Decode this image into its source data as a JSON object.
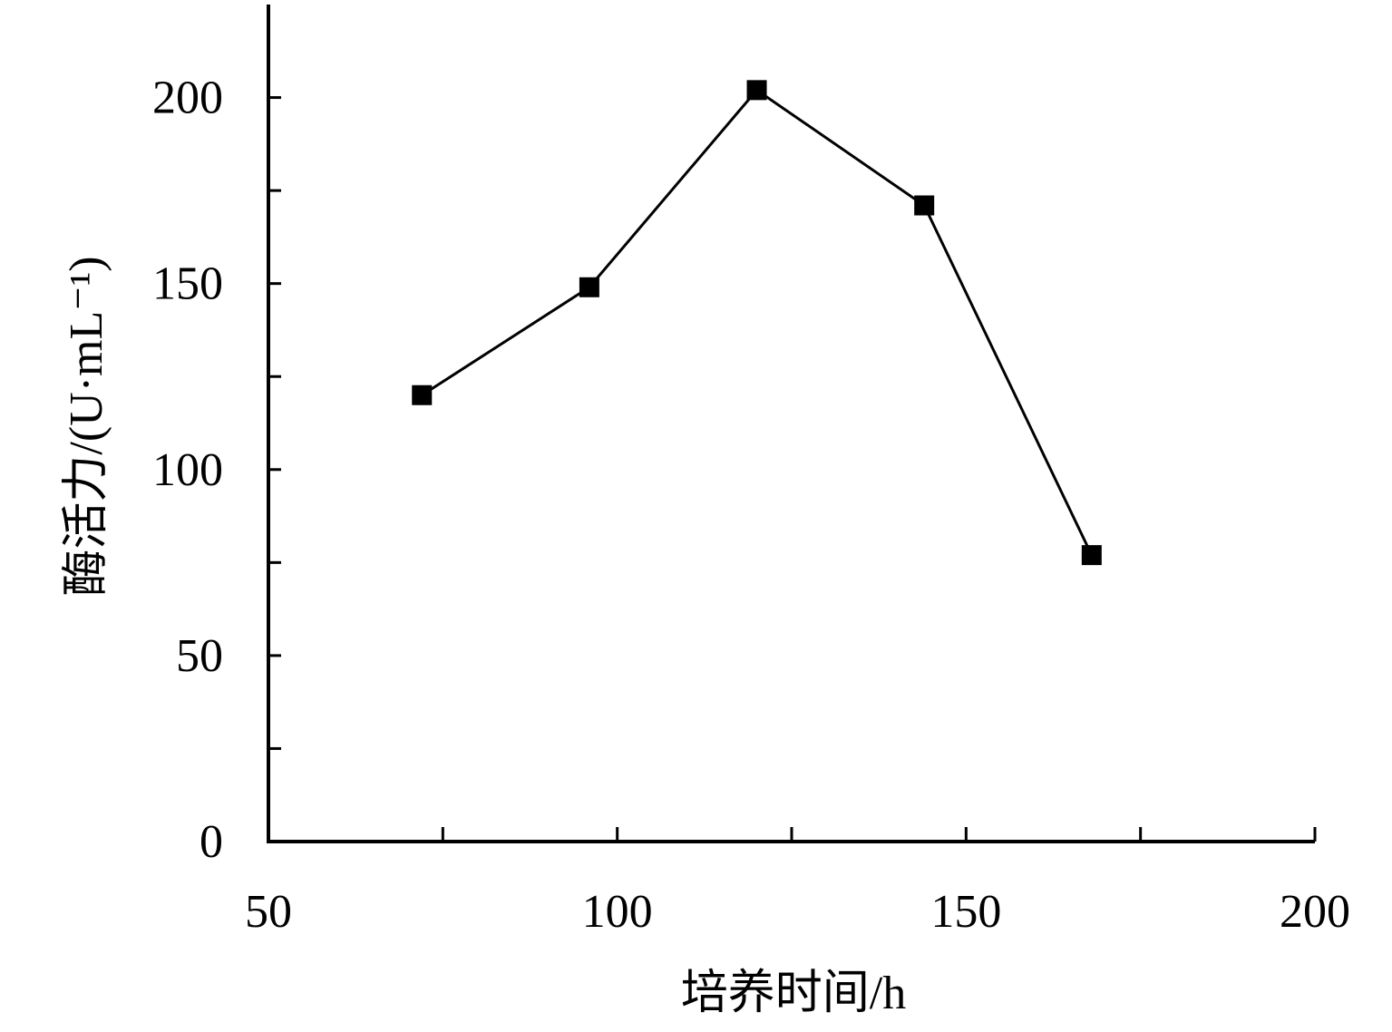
{
  "chart_data": {
    "type": "line",
    "x_label": "培养时间/h",
    "y_label": "酶活力/(U·mL⁻¹)",
    "x": [
      72,
      96,
      120,
      144,
      168
    ],
    "series": [
      {
        "name": "酶活力",
        "color": "#000000",
        "values": [
          120,
          149,
          202,
          171,
          77
        ]
      }
    ],
    "xlim": [
      50,
      200
    ],
    "xticks": [
      50,
      100,
      150,
      200
    ],
    "xminorticks": [
      75,
      125,
      175
    ],
    "ylim": [
      0,
      225
    ],
    "yticks": [
      0,
      50,
      100,
      150,
      200
    ],
    "yminorticks": [
      25,
      75,
      125,
      175
    ],
    "marker": "square",
    "grid": false
  }
}
